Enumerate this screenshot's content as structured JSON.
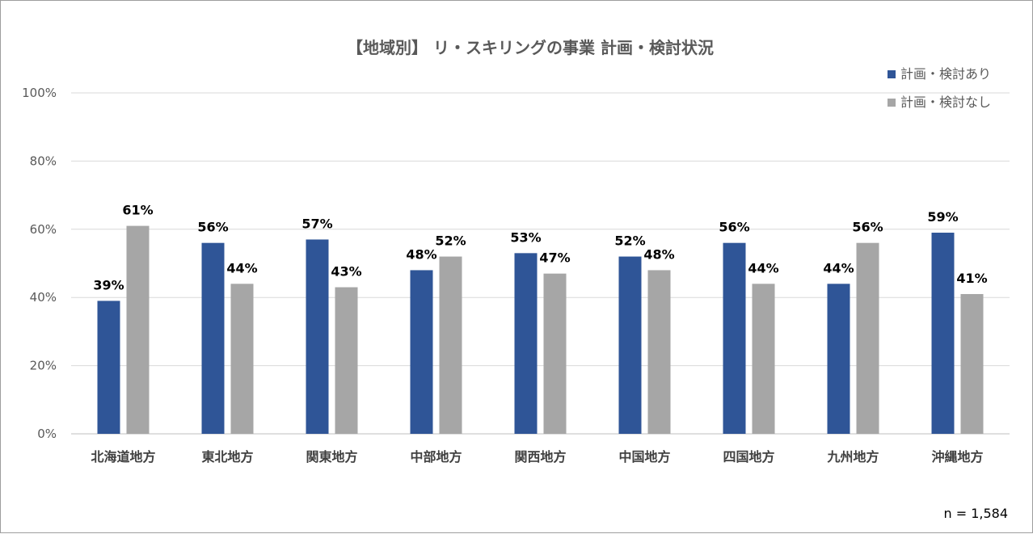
{
  "chart_data": {
    "type": "bar",
    "title": "【地域別】 リ・スキリングの事業 計画・検討状況",
    "categories": [
      "北海道地方",
      "東北地方",
      "関東地方",
      "中部地方",
      "関西地方",
      "中国地方",
      "四国地方",
      "九州地方",
      "沖縄地方"
    ],
    "series": [
      {
        "name": "計画・検討あり",
        "color": "#2F5597",
        "values": [
          39,
          56,
          57,
          48,
          53,
          52,
          56,
          44,
          59
        ]
      },
      {
        "name": "計画・検討なし",
        "color": "#A6A6A6",
        "values": [
          61,
          44,
          43,
          52,
          47,
          48,
          44,
          56,
          41
        ]
      }
    ],
    "data_label_suffix": "%",
    "ylim": [
      0,
      100
    ],
    "yticks": [
      "0%",
      "20%",
      "40%",
      "60%",
      "80%",
      "100%"
    ],
    "grid": true,
    "legend_position": "top-right",
    "xlabel": "",
    "ylabel": ""
  },
  "note": "n = 1,584"
}
